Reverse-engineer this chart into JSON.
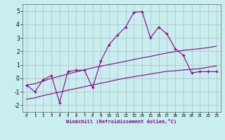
{
  "xlabel": "Windchill (Refroidissement éolien,°C)",
  "background_color": "#c8eef0",
  "grid_color": "#b0b0b0",
  "line_color": "#880088",
  "x_data": [
    0,
    1,
    2,
    3,
    4,
    5,
    6,
    7,
    8,
    9,
    10,
    11,
    12,
    13,
    14,
    15,
    16,
    17,
    18,
    19,
    20,
    21,
    22,
    23
  ],
  "y_main": [
    -0.5,
    -1.0,
    -0.1,
    0.2,
    -1.8,
    0.5,
    0.6,
    0.6,
    -0.7,
    1.3,
    2.5,
    3.2,
    3.8,
    4.9,
    4.95,
    3.0,
    3.8,
    3.3,
    2.2,
    1.7,
    0.4,
    0.5,
    0.5,
    0.5
  ],
  "y_upper": [
    -0.5,
    -0.4,
    -0.2,
    0.0,
    0.15,
    0.32,
    0.48,
    0.62,
    0.78,
    0.9,
    1.02,
    1.14,
    1.26,
    1.4,
    1.52,
    1.62,
    1.76,
    1.88,
    1.98,
    2.08,
    2.14,
    2.2,
    2.28,
    2.38
  ],
  "y_lower": [
    -1.55,
    -1.45,
    -1.28,
    -1.15,
    -1.02,
    -0.88,
    -0.76,
    -0.62,
    -0.5,
    -0.36,
    -0.24,
    -0.1,
    0.02,
    0.12,
    0.22,
    0.32,
    0.42,
    0.52,
    0.56,
    0.62,
    0.67,
    0.72,
    0.82,
    0.92
  ],
  "ylim": [
    -2.5,
    5.5
  ],
  "xlim": [
    -0.5,
    23.5
  ],
  "yticks": [
    -2,
    -1,
    0,
    1,
    2,
    3,
    4,
    5
  ],
  "xticks": [
    0,
    1,
    2,
    3,
    4,
    5,
    6,
    7,
    8,
    9,
    10,
    11,
    12,
    13,
    14,
    15,
    16,
    17,
    18,
    19,
    20,
    21,
    22,
    23
  ]
}
